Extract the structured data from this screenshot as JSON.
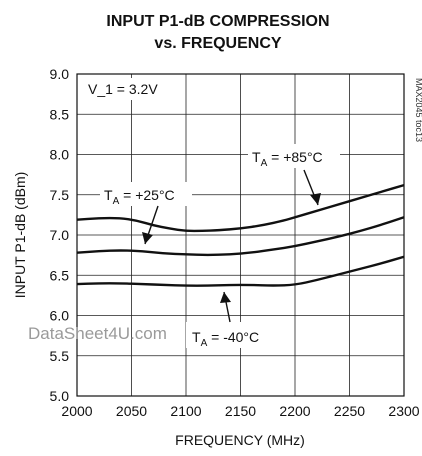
{
  "chart_data": {
    "type": "line",
    "title_line1": "INPUT P1-dB COMPRESSION",
    "title_line2": "vs. FREQUENCY",
    "xlabel": "FREQUENCY (MHz)",
    "ylabel": "INPUT P1-dB (dBm)",
    "xlim": [
      2000,
      2300
    ],
    "ylim": [
      5.0,
      9.0
    ],
    "x_ticks": [
      2000,
      2050,
      2100,
      2150,
      2200,
      2250,
      2300
    ],
    "y_ticks": [
      "5.0",
      "5.5",
      "6.0",
      "6.5",
      "7.0",
      "7.5",
      "8.0",
      "8.5",
      "9.0"
    ],
    "grid": true,
    "condition_label": "V_1 = 3.2V",
    "figure_code": "MAX2045 toc13",
    "watermark": "DataSheet4U.com",
    "series": [
      {
        "label_sub": "A",
        "label_rest": " = +85°C",
        "x": [
          2000,
          2020,
          2040,
          2055,
          2070,
          2085,
          2100,
          2115,
          2130,
          2150,
          2170,
          2190,
          2200,
          2220,
          2240,
          2260,
          2280,
          2300
        ],
        "y": [
          7.19,
          7.21,
          7.21,
          7.18,
          7.12,
          7.08,
          7.05,
          7.05,
          7.06,
          7.08,
          7.12,
          7.18,
          7.22,
          7.3,
          7.38,
          7.46,
          7.54,
          7.62
        ]
      },
      {
        "label_sub": "A",
        "label_rest": " = +25°C",
        "x": [
          2000,
          2020,
          2040,
          2060,
          2080,
          2100,
          2120,
          2140,
          2160,
          2180,
          2200,
          2220,
          2240,
          2260,
          2280,
          2300
        ],
        "y": [
          6.78,
          6.8,
          6.81,
          6.8,
          6.77,
          6.76,
          6.75,
          6.76,
          6.78,
          6.82,
          6.86,
          6.92,
          6.98,
          7.05,
          7.13,
          7.22
        ]
      },
      {
        "label_sub": "A",
        "label_rest": " = -40°C",
        "x": [
          2000,
          2020,
          2040,
          2060,
          2080,
          2100,
          2120,
          2140,
          2160,
          2180,
          2200,
          2220,
          2240,
          2260,
          2280,
          2300
        ],
        "y": [
          6.39,
          6.4,
          6.4,
          6.39,
          6.38,
          6.37,
          6.37,
          6.38,
          6.38,
          6.37,
          6.38,
          6.44,
          6.51,
          6.58,
          6.65,
          6.73
        ]
      }
    ]
  }
}
